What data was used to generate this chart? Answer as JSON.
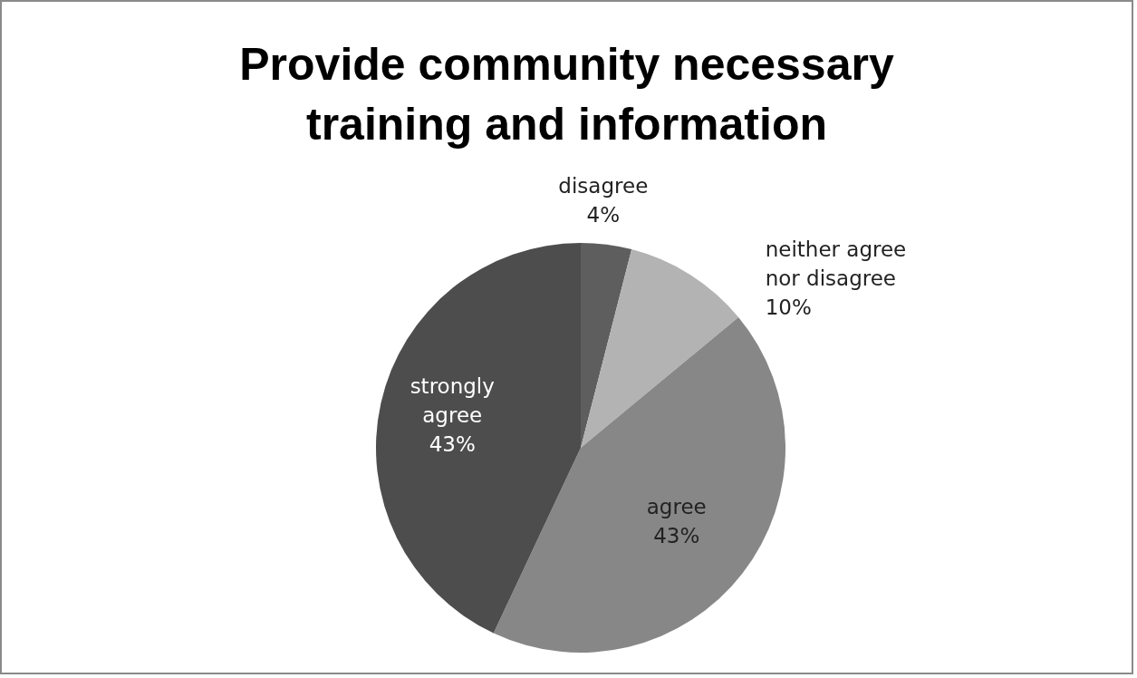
{
  "chart_data": {
    "type": "pie",
    "title": "Provide community necessary training and information",
    "categories": [
      "disagree",
      "neither agree nor disagree",
      "agree",
      "strongly agree"
    ],
    "values": [
      4,
      10,
      43,
      43
    ],
    "value_labels": [
      "4%",
      "10%",
      "43%",
      "43%"
    ],
    "colors": [
      "#5e5e5e",
      "#b3b3b3",
      "#878787",
      "#4d4d4d"
    ]
  }
}
